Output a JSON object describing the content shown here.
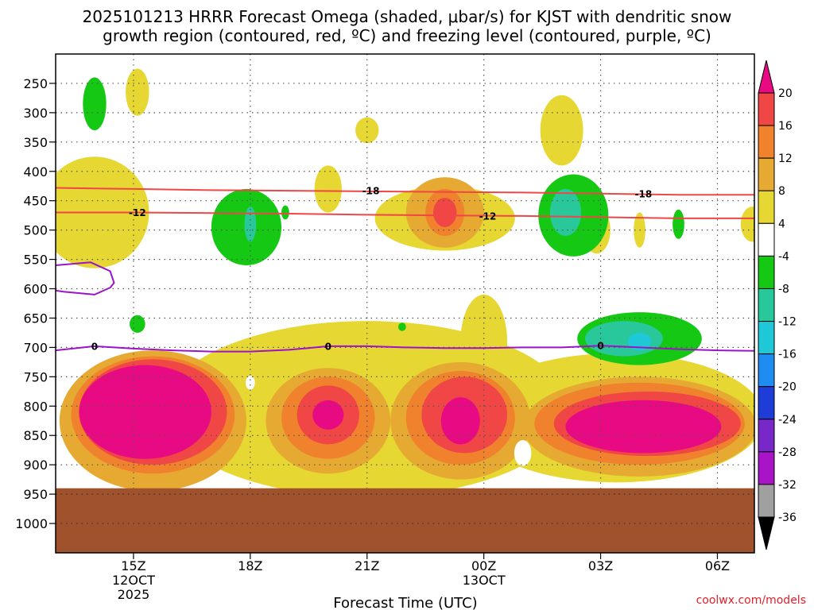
{
  "chart_data": {
    "type": "heatmap",
    "title_line1": "2025101213 HRRR Forecast Omega (shaded, μbar/s) for KJST with dendritic snow",
    "title_line2": "growth region (contoured, red, ºC) and freezing level (contoured, purple, ºC)",
    "xlabel": "Forecast Time (UTC)",
    "credit": "coolwx.com/models",
    "x_ticks": [
      {
        "hour": 15,
        "label": "15Z",
        "sub1": "12OCT",
        "sub2": "2025"
      },
      {
        "hour": 18,
        "label": "18Z",
        "sub1": "",
        "sub2": ""
      },
      {
        "hour": 21,
        "label": "21Z",
        "sub1": "",
        "sub2": ""
      },
      {
        "hour": 24,
        "label": "00Z",
        "sub1": "13OCT",
        "sub2": ""
      },
      {
        "hour": 27,
        "label": "03Z",
        "sub1": "",
        "sub2": ""
      },
      {
        "hour": 30,
        "label": "06Z",
        "sub1": "",
        "sub2": ""
      }
    ],
    "x_range": [
      13.0,
      30.95
    ],
    "y_ticks": [
      250,
      300,
      350,
      400,
      450,
      500,
      550,
      600,
      650,
      700,
      750,
      800,
      850,
      900,
      950,
      1000
    ],
    "y_range_hpa": [
      200,
      1050
    ],
    "surface_pressure_hpa": 940,
    "colorbar": {
      "levels": [
        "20",
        "16",
        "12",
        "8",
        "4",
        "-4",
        "-8",
        "-12",
        "-16",
        "-20",
        "-24",
        "-28",
        "-32",
        "-36"
      ],
      "colors": [
        "#e80a82",
        "#f04646",
        "#f0822d",
        "#e6aa32",
        "#e6d732",
        "#ffffff",
        "#14c814",
        "#28c89b",
        "#1ec8d7",
        "#1e8cf0",
        "#1e3cd7",
        "#7828c8",
        "#aa14c8",
        "#a0a0a0",
        "#000000"
      ]
    },
    "contours": {
      "snow_growth": {
        "color": "#f04646",
        "labels": [
          "-18",
          "-12"
        ]
      },
      "freezing": {
        "color": "#9b14c8",
        "labels": [
          "0"
        ]
      }
    },
    "omega_regions": [
      {
        "level": "4",
        "hour": 14.0,
        "hpa": 470,
        "rx": 1.4,
        "ry": 95
      },
      {
        "level": "4",
        "hour": 15.1,
        "hpa": 265,
        "rx": 0.3,
        "ry": 40
      },
      {
        "level": "4",
        "hour": 20.0,
        "hpa": 430,
        "rx": 0.35,
        "ry": 40
      },
      {
        "level": "4",
        "hour": 21.0,
        "hpa": 330,
        "rx": 0.3,
        "ry": 22
      },
      {
        "level": "4",
        "hour": 26.0,
        "hpa": 330,
        "rx": 0.55,
        "ry": 60
      },
      {
        "level": "4",
        "hour": 26.9,
        "hpa": 500,
        "rx": 0.35,
        "ry": 40
      },
      {
        "level": "4",
        "hour": 23.0,
        "hpa": 480,
        "rx": 1.8,
        "ry": 55
      },
      {
        "level": "4",
        "hour": 28.0,
        "hpa": 500,
        "rx": 0.15,
        "ry": 30
      },
      {
        "level": "4",
        "hour": 30.9,
        "hpa": 490,
        "rx": 0.3,
        "ry": 30
      },
      {
        "level": "4",
        "hour": 21.0,
        "hpa": 805,
        "rx": 5.2,
        "ry": 150
      },
      {
        "level": "4",
        "hour": 27.4,
        "hpa": 820,
        "rx": 3.8,
        "ry": 110
      },
      {
        "level": "4",
        "hour": 24.0,
        "hpa": 690,
        "rx": 0.6,
        "ry": 80
      },
      {
        "level": "8",
        "hour": 23.0,
        "hpa": 470,
        "rx": 1.0,
        "ry": 60
      },
      {
        "level": "8",
        "hour": 15.5,
        "hpa": 825,
        "rx": 2.4,
        "ry": 120
      },
      {
        "level": "8",
        "hour": 20.0,
        "hpa": 825,
        "rx": 1.6,
        "ry": 90
      },
      {
        "level": "8",
        "hour": 23.4,
        "hpa": 825,
        "rx": 1.8,
        "ry": 100
      },
      {
        "level": "8",
        "hour": 28.0,
        "hpa": 835,
        "rx": 3.0,
        "ry": 85
      },
      {
        "level": "12",
        "hour": 23.0,
        "hpa": 470,
        "rx": 0.5,
        "ry": 40
      },
      {
        "level": "12",
        "hour": 15.5,
        "hpa": 815,
        "rx": 2.1,
        "ry": 100
      },
      {
        "level": "12",
        "hour": 20.0,
        "hpa": 820,
        "rx": 1.2,
        "ry": 70
      },
      {
        "level": "12",
        "hour": 23.4,
        "hpa": 820,
        "rx": 1.4,
        "ry": 80
      },
      {
        "level": "12",
        "hour": 28.0,
        "hpa": 830,
        "rx": 2.7,
        "ry": 70
      },
      {
        "level": "16",
        "hour": 23.0,
        "hpa": 470,
        "rx": 0.3,
        "ry": 25
      },
      {
        "level": "16",
        "hour": 15.5,
        "hpa": 810,
        "rx": 1.9,
        "ry": 90
      },
      {
        "level": "16",
        "hour": 20.0,
        "hpa": 815,
        "rx": 0.8,
        "ry": 50
      },
      {
        "level": "16",
        "hour": 23.5,
        "hpa": 815,
        "rx": 1.1,
        "ry": 65
      },
      {
        "level": "16",
        "hour": 28.2,
        "hpa": 830,
        "rx": 2.4,
        "ry": 55
      },
      {
        "level": "20",
        "hour": 15.3,
        "hpa": 810,
        "rx": 1.7,
        "ry": 80
      },
      {
        "level": "20",
        "hour": 20.0,
        "hpa": 815,
        "rx": 0.4,
        "ry": 25
      },
      {
        "level": "20",
        "hour": 23.4,
        "hpa": 825,
        "rx": 0.5,
        "ry": 40
      },
      {
        "level": "20",
        "hour": 28.1,
        "hpa": 835,
        "rx": 2.0,
        "ry": 45
      },
      {
        "level": "-4",
        "hour": 14.0,
        "hpa": 285,
        "rx": 0.3,
        "ry": 45
      },
      {
        "level": "-4",
        "hour": 17.9,
        "hpa": 495,
        "rx": 0.9,
        "ry": 65
      },
      {
        "level": "-4",
        "hour": 26.3,
        "hpa": 475,
        "rx": 0.9,
        "ry": 70
      },
      {
        "level": "-4",
        "hour": 28.0,
        "hpa": 685,
        "rx": 1.6,
        "ry": 45
      },
      {
        "level": "-4",
        "hour": 15.1,
        "hpa": 660,
        "rx": 0.2,
        "ry": 15
      },
      {
        "level": "-4",
        "hour": 21.9,
        "hpa": 665,
        "rx": 0.1,
        "ry": 7
      },
      {
        "level": "-4",
        "hour": 18.9,
        "hpa": 470,
        "rx": 0.1,
        "ry": 12
      },
      {
        "level": "-4",
        "hour": 29.0,
        "hpa": 490,
        "rx": 0.15,
        "ry": 25
      },
      {
        "level": "-8",
        "hour": 18.0,
        "hpa": 490,
        "rx": 0.15,
        "ry": 30
      },
      {
        "level": "-8",
        "hour": 26.1,
        "hpa": 470,
        "rx": 0.4,
        "ry": 40
      },
      {
        "level": "-8",
        "hour": 27.6,
        "hpa": 685,
        "rx": 1.0,
        "ry": 30
      },
      {
        "level": "-12",
        "hour": 28.0,
        "hpa": 690,
        "rx": 0.3,
        "ry": 15
      }
    ],
    "white_gaps": [
      {
        "hour": 18.0,
        "hpa": 760,
        "rx": 0.12,
        "ry": 12
      },
      {
        "hour": 25.0,
        "hpa": 880,
        "rx": 0.22,
        "ry": 22
      }
    ],
    "series": [
      {
        "name": "-18",
        "kind": "snow_growth",
        "x": [
          13,
          15,
          17,
          19,
          21,
          23,
          25,
          27,
          29,
          31
        ],
        "y": [
          428,
          430,
          432,
          433,
          434,
          435,
          436,
          438,
          440,
          440
        ]
      },
      {
        "name": "-12",
        "kind": "snow_growth",
        "x": [
          13,
          15,
          17,
          19,
          21,
          23,
          25,
          27,
          29,
          31
        ],
        "y": [
          470,
          470,
          471,
          472,
          474,
          475,
          476,
          478,
          480,
          480
        ]
      },
      {
        "name": "0",
        "kind": "freezing",
        "x": [
          13,
          14,
          15,
          16,
          17,
          18,
          19,
          20,
          21,
          22,
          23,
          24,
          25,
          26,
          27,
          28,
          29,
          30,
          31
        ],
        "y": [
          705,
          698,
          702,
          705,
          707,
          707,
          704,
          698,
          698,
          700,
          701,
          701,
          700,
          700,
          697,
          700,
          703,
          705,
          706
        ]
      },
      {
        "name": "0",
        "kind": "freezing",
        "x": [
          13.0,
          13.9,
          14.4,
          14.5,
          14.4,
          14.0,
          13.2,
          13.0
        ],
        "y": [
          560,
          555,
          570,
          590,
          598,
          610,
          605,
          603
        ]
      }
    ],
    "contour_label_positions": [
      {
        "text": "-18",
        "hour": 21.1,
        "hpa": 433
      },
      {
        "text": "-18",
        "hour": 28.1,
        "hpa": 438
      },
      {
        "text": "-12",
        "hour": 15.1,
        "hpa": 470
      },
      {
        "text": "-12",
        "hour": 24.1,
        "hpa": 476
      },
      {
        "text": "0",
        "hour": 14.0,
        "hpa": 698
      },
      {
        "text": "0",
        "hour": 20.0,
        "hpa": 698
      },
      {
        "text": "0",
        "hour": 27.0,
        "hpa": 697
      }
    ]
  }
}
